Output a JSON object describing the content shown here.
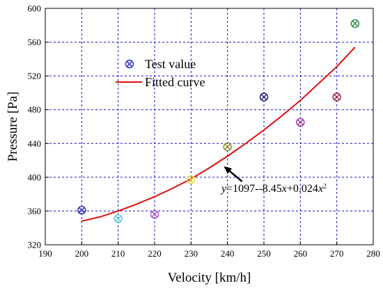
{
  "chart_data": {
    "type": "scatter",
    "xlabel": "Velocity [km/h]",
    "ylabel": "Pressure [Pa]",
    "xlim": [
      190,
      280
    ],
    "ylim": [
      320,
      600
    ],
    "x_ticks": [
      190,
      200,
      210,
      220,
      230,
      240,
      250,
      260,
      270,
      280
    ],
    "y_ticks": [
      320,
      360,
      400,
      440,
      480,
      520,
      560,
      600
    ],
    "grid": true,
    "legend_position": "top-left",
    "series": [
      {
        "name": "Test value",
        "kind": "scatter",
        "marker": "circle-cross",
        "points": [
          {
            "x": 200,
            "y": 361,
            "color": "#2a2ab8"
          },
          {
            "x": 210,
            "y": 351,
            "color": "#5ec8dc"
          },
          {
            "x": 220,
            "y": 356,
            "color": "#b050c8"
          },
          {
            "x": 230,
            "y": 397,
            "color": "#e8e038"
          },
          {
            "x": 240,
            "y": 436,
            "color": "#8a8a30"
          },
          {
            "x": 250,
            "y": 495,
            "color": "#1a1a80"
          },
          {
            "x": 260,
            "y": 465,
            "color": "#a030a0"
          },
          {
            "x": 270,
            "y": 495,
            "color": "#a02040"
          },
          {
            "x": 275,
            "y": 582,
            "color": "#208a40"
          }
        ]
      },
      {
        "name": "Fitted curve",
        "kind": "line",
        "color": "#e01010",
        "x": [
          200,
          205,
          210,
          215,
          220,
          225,
          230,
          235,
          240,
          245,
          250,
          255,
          260,
          265,
          270,
          275
        ],
        "y": [
          348,
          353,
          360,
          368,
          377,
          387,
          398,
          411,
          425,
          440,
          456,
          473,
          491,
          511,
          531,
          554
        ]
      }
    ],
    "annotation": {
      "prefix": "y",
      "text": "=1097--8.45",
      "var1": "x",
      "mid": "+0.024",
      "var2": "x",
      "suffix": "2",
      "arrow_from": [
        244,
        395
      ],
      "arrow_to": [
        239,
        413
      ]
    }
  }
}
